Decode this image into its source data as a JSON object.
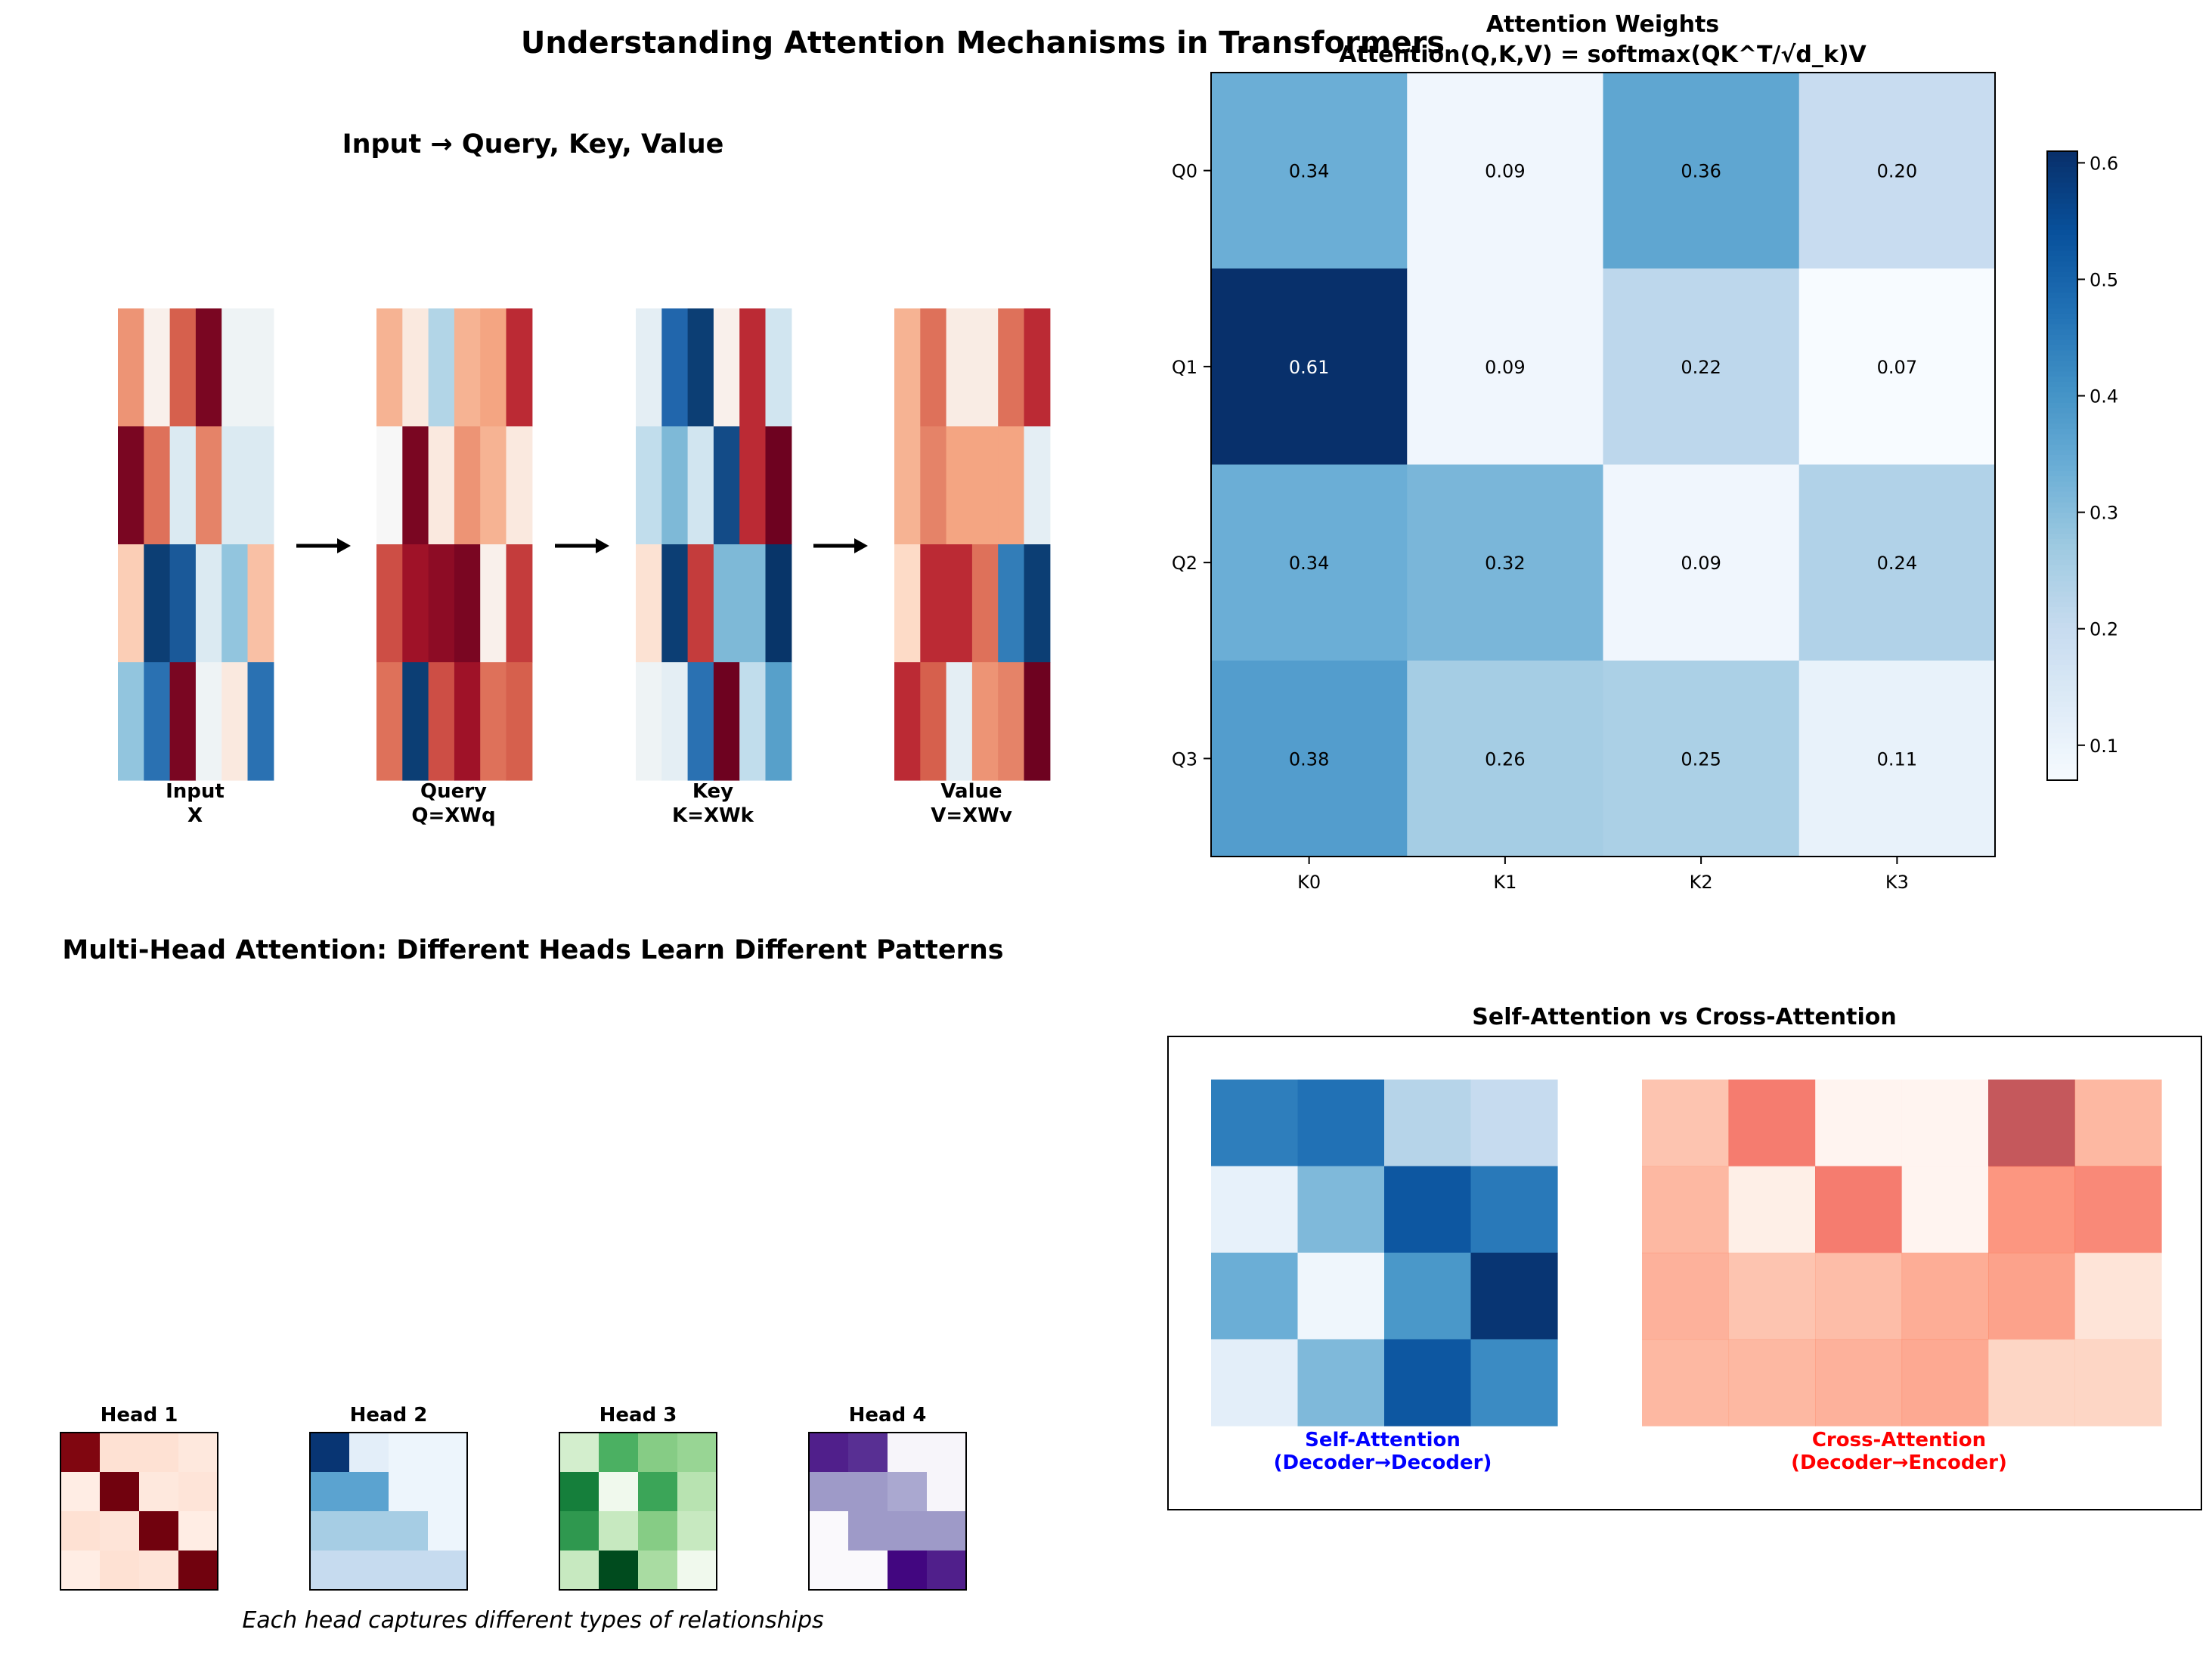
{
  "page_title": "Understanding Attention Mechanisms in Transformers",
  "chart_data": [
    {
      "type": "heatmap",
      "title": "Input → Query, Key, Value",
      "colormap": "RdBu_r",
      "matrices": [
        {
          "label_line1": "Input",
          "label_line2": "X",
          "values": [
            [
              0.45,
              0.05,
              0.6,
              0.95,
              -0.05,
              -0.05
            ],
            [
              0.95,
              0.55,
              -0.15,
              0.5,
              -0.15,
              -0.15
            ],
            [
              0.25,
              -0.95,
              -0.85,
              -0.15,
              -0.4,
              0.3
            ],
            [
              -0.4,
              -0.75,
              0.95,
              -0.05,
              0.1,
              -0.75
            ]
          ]
        },
        {
          "label_line1": "Query",
          "label_line2": "Q=XWq",
          "values": [
            [
              0.35,
              0.1,
              -0.3,
              0.35,
              0.4,
              0.75
            ],
            [
              0.0,
              0.95,
              0.1,
              0.45,
              0.35,
              0.1
            ],
            [
              0.65,
              0.85,
              0.9,
              0.95,
              0.05,
              0.7
            ],
            [
              0.55,
              -0.95,
              0.65,
              0.85,
              0.55,
              0.6
            ]
          ]
        },
        {
          "label_line1": "Key",
          "label_line2": "K=XWk",
          "values": [
            [
              -0.1,
              -0.8,
              -0.95,
              0.05,
              0.75,
              -0.2
            ],
            [
              -0.25,
              -0.45,
              -0.2,
              -0.9,
              0.75,
              0.98
            ],
            [
              0.15,
              -0.95,
              0.7,
              -0.45,
              -0.45,
              -0.98
            ],
            [
              -0.05,
              -0.1,
              -0.75,
              0.98,
              -0.25,
              -0.55
            ]
          ]
        },
        {
          "label_line1": "Value",
          "label_line2": "V=XWv",
          "values": [
            [
              0.35,
              0.55,
              0.08,
              0.08,
              0.55,
              0.75
            ],
            [
              0.35,
              0.5,
              0.4,
              0.4,
              0.4,
              -0.1
            ],
            [
              0.2,
              0.75,
              0.75,
              0.55,
              -0.7,
              -0.95
            ],
            [
              0.75,
              0.6,
              -0.1,
              0.45,
              0.5,
              0.98
            ]
          ]
        }
      ]
    },
    {
      "type": "heatmap",
      "title_line1": "Attention Weights",
      "title_line2": "Attention(Q,K,V) = softmax(QK^T/√d_k)V",
      "colormap": "Blues",
      "rows": [
        "Q0",
        "Q1",
        "Q2",
        "Q3"
      ],
      "cols": [
        "K0",
        "K1",
        "K2",
        "K3"
      ],
      "values": [
        [
          0.34,
          0.09,
          0.36,
          0.2
        ],
        [
          0.61,
          0.09,
          0.22,
          0.07
        ],
        [
          0.34,
          0.32,
          0.09,
          0.24
        ],
        [
          0.38,
          0.26,
          0.25,
          0.11
        ]
      ],
      "colorbar": {
        "min": 0.07,
        "max": 0.61,
        "ticks": [
          "0.1",
          "0.2",
          "0.3",
          "0.4",
          "0.5",
          "0.6"
        ]
      }
    },
    {
      "type": "heatmap",
      "title": "Multi-Head Attention: Different Heads Learn Different Patterns",
      "caption": "Each head captures different types of relationships",
      "heads": [
        {
          "title": "Head 1",
          "colormap": "Reds",
          "values": [
            [
              0.95,
              0.12,
              0.12,
              0.08
            ],
            [
              0.05,
              0.98,
              0.08,
              0.1
            ],
            [
              0.12,
              0.1,
              0.98,
              0.05
            ],
            [
              0.05,
              0.12,
              0.1,
              0.98
            ]
          ]
        },
        {
          "title": "Head 2",
          "colormap": "Blues",
          "values": [
            [
              0.98,
              0.1,
              0.05,
              0.05
            ],
            [
              0.55,
              0.55,
              0.05,
              0.05
            ],
            [
              0.35,
              0.35,
              0.35,
              0.05
            ],
            [
              0.25,
              0.25,
              0.25,
              0.25
            ]
          ]
        },
        {
          "title": "Head 3",
          "colormap": "Greens",
          "values": [
            [
              0.2,
              0.6,
              0.45,
              0.4
            ],
            [
              0.8,
              0.05,
              0.65,
              0.3
            ],
            [
              0.7,
              0.25,
              0.45,
              0.25
            ],
            [
              0.25,
              0.98,
              0.35,
              0.05
            ]
          ]
        },
        {
          "title": "Head 4",
          "colormap": "Purples",
          "values": [
            [
              0.9,
              0.85,
              0.05,
              0.05
            ],
            [
              0.5,
              0.5,
              0.45,
              0.05
            ],
            [
              0.02,
              0.5,
              0.5,
              0.5
            ],
            [
              0.02,
              0.02,
              0.98,
              0.9
            ]
          ]
        }
      ]
    },
    {
      "type": "heatmap",
      "title": "Self-Attention vs Cross-Attention",
      "self": {
        "label_line1": "Self-Attention",
        "label_line2": "(Decoder→Decoder)",
        "label_color": "#0000ff",
        "colormap": "Blues",
        "values": [
          [
            0.7,
            0.75,
            0.3,
            0.25
          ],
          [
            0.08,
            0.45,
            0.85,
            0.72
          ],
          [
            0.5,
            0.04,
            0.6,
            0.98
          ],
          [
            0.1,
            0.45,
            0.85,
            0.65
          ]
        ]
      },
      "cross": {
        "label_line1": "Cross-Attention",
        "label_line2": "(Decoder→Encoder)",
        "label_color": "#ff0000",
        "colormap": "Reds",
        "values": [
          [
            0.3,
            0.6,
            0.03,
            0.03,
            0.85,
            0.35
          ],
          [
            0.35,
            0.08,
            0.6,
            0.03,
            0.5,
            0.55
          ],
          [
            0.38,
            0.3,
            0.33,
            0.4,
            0.45,
            0.15
          ],
          [
            0.35,
            0.35,
            0.38,
            0.42,
            0.22,
            0.22
          ]
        ]
      }
    }
  ]
}
